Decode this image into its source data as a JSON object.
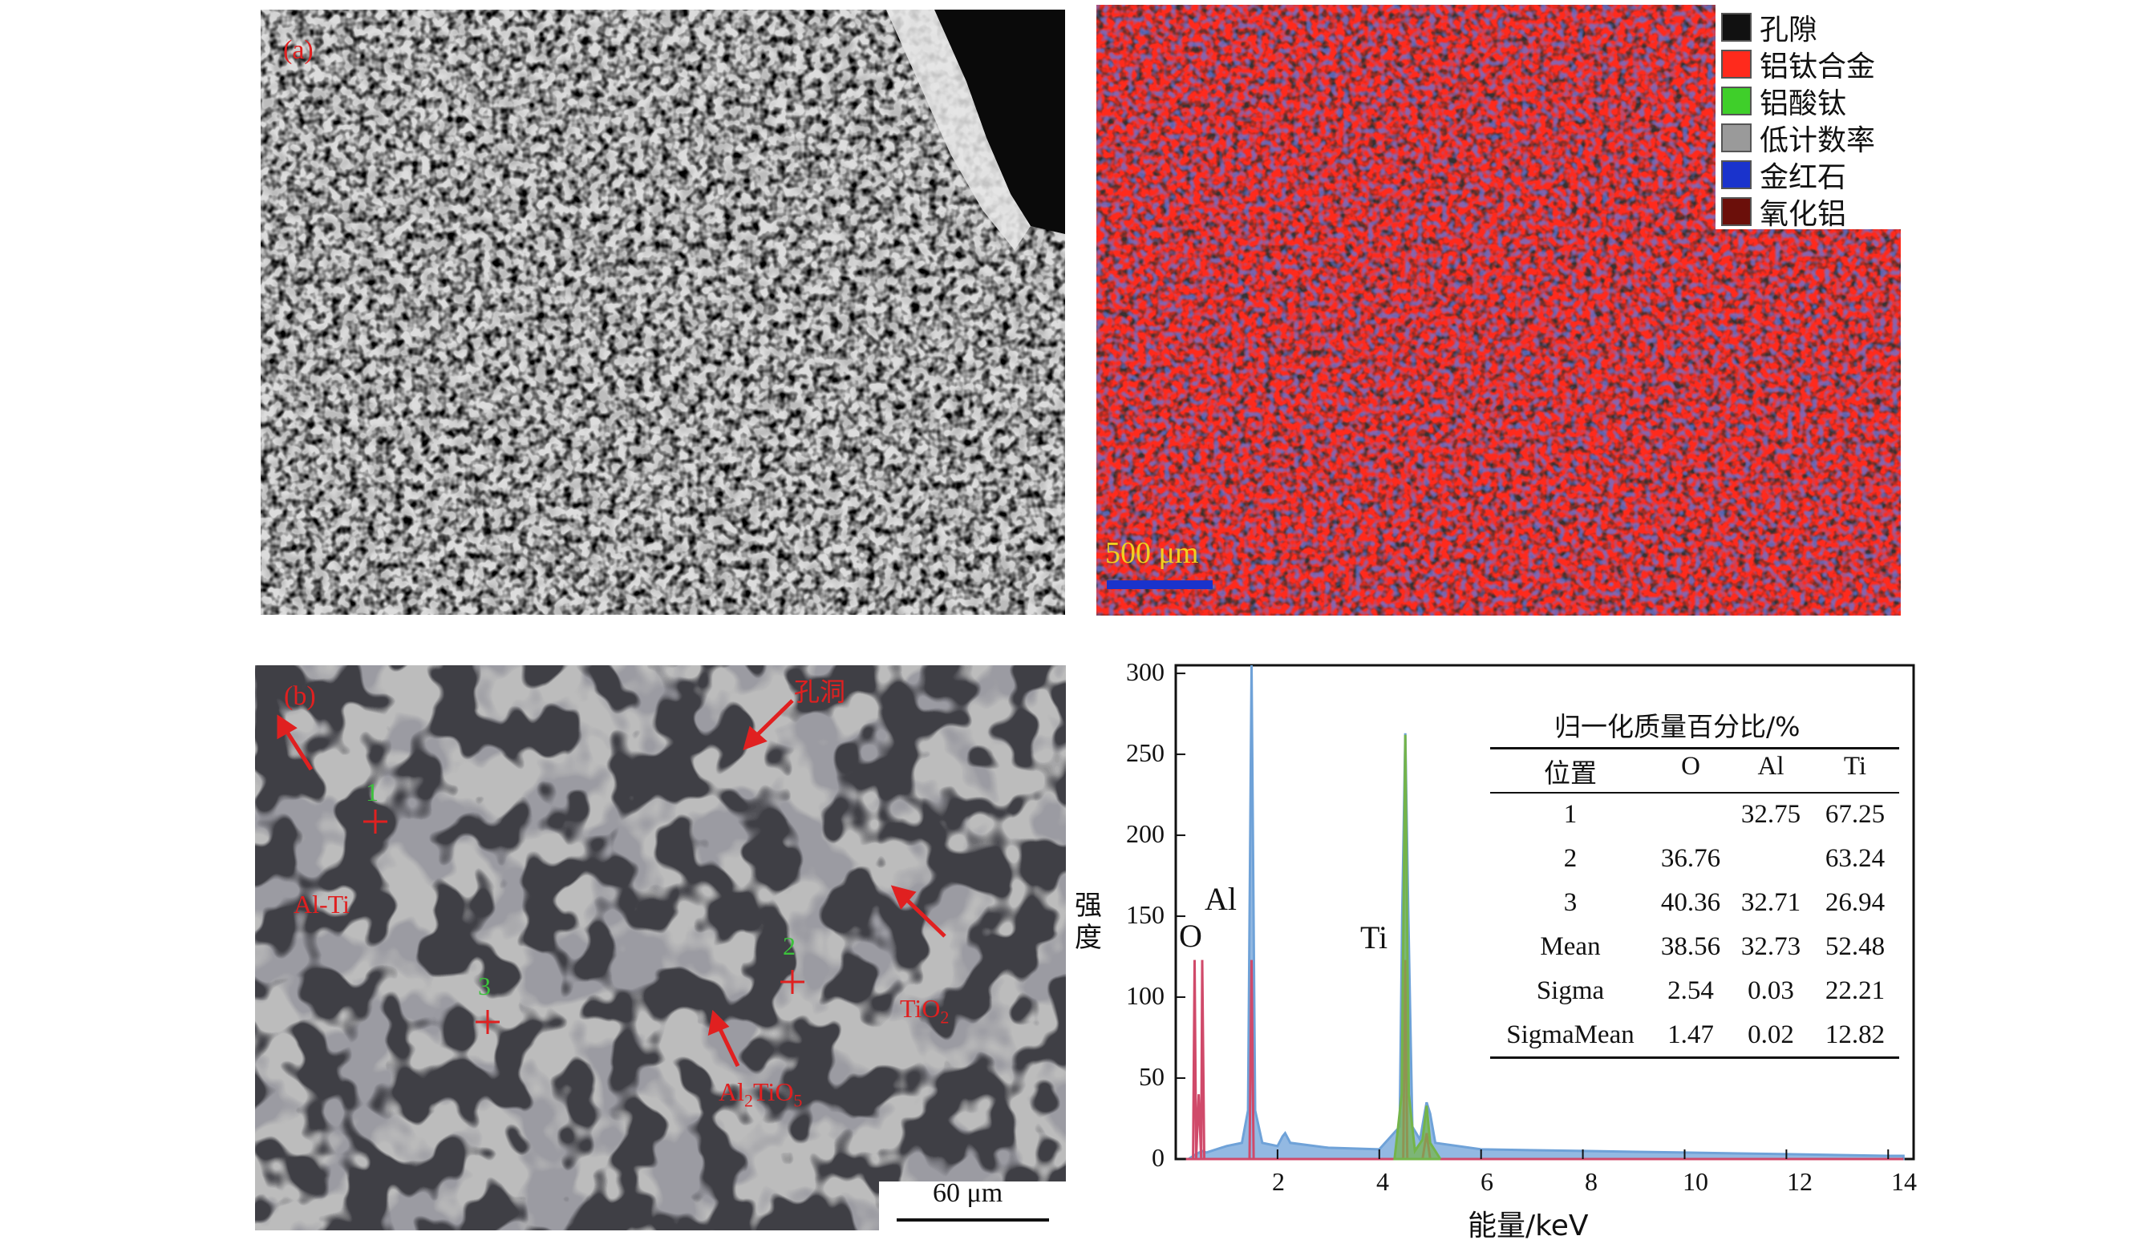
{
  "panel_a": {
    "tag": "(a)"
  },
  "legend": {
    "items": [
      {
        "label": "孔隙",
        "color": "#111111"
      },
      {
        "label": "铝钛合金",
        "color": "#ff2a1c"
      },
      {
        "label": "铝酸钛",
        "color": "#3fcf2a"
      },
      {
        "label": "低计数率",
        "color": "#9a9a9a"
      },
      {
        "label": "金红石",
        "color": "#1a33cc"
      },
      {
        "label": "氧化铝",
        "color": "#6b0f0a"
      }
    ]
  },
  "map_scale": {
    "label": "500 μm",
    "color": "#f0d020",
    "bar_color": "#1a33cc"
  },
  "panel_b": {
    "tag": "(b)",
    "annotations": {
      "pore": "孔洞",
      "alti": "Al-Ti",
      "tio2": "TiO",
      "tio2_sub": "2",
      "al2tio5_a": "Al",
      "al2tio5_sub1": "2",
      "al2tio5_b": "TiO",
      "al2tio5_sub2": "5"
    },
    "points": [
      "1",
      "2",
      "3"
    ],
    "scale": "60 μm"
  },
  "chart_data": {
    "type": "line",
    "title": "",
    "xlabel": "能量/keV",
    "ylabel": "强度",
    "xlim": [
      0,
      14.5
    ],
    "ylim": [
      0,
      305
    ],
    "xticks": [
      "2",
      "4",
      "6",
      "8",
      "10",
      "12",
      "14"
    ],
    "yticks": [
      "0",
      "50",
      "100",
      "150",
      "200",
      "250",
      "300"
    ],
    "peak_labels": [
      "O",
      "Al",
      "Ti"
    ],
    "series": [
      {
        "color": "#6fa2d8",
        "x": [
          0.25,
          0.4,
          0.52,
          0.6,
          1.0,
          1.3,
          1.42,
          1.49,
          1.56,
          1.7,
          2.0,
          2.1,
          2.15,
          2.25,
          3.0,
          4.0,
          4.4,
          4.45,
          4.51,
          4.57,
          4.65,
          4.8,
          4.9,
          4.93,
          5.0,
          5.1,
          6.0,
          8.0,
          10.0,
          12.0,
          14.0,
          14.3
        ],
        "y": [
          0,
          3,
          5,
          4,
          8,
          10,
          30,
          305,
          30,
          10,
          8,
          14,
          16,
          10,
          7,
          6,
          20,
          150,
          263,
          150,
          20,
          12,
          30,
          35,
          28,
          10,
          6,
          5,
          4,
          3,
          2,
          2
        ]
      },
      {
        "color": "#d04a6a",
        "x": [
          0.2,
          0.34,
          0.37,
          0.4,
          0.45,
          0.5,
          0.52,
          0.56,
          0.6,
          1.2,
          1.45,
          1.49,
          1.53,
          1.8,
          4.3,
          4.47,
          4.51,
          4.55,
          4.7,
          4.85,
          4.93,
          5.0,
          5.5,
          14.3
        ],
        "y": [
          0,
          0,
          123,
          0,
          40,
          0,
          123,
          0,
          0,
          0,
          0,
          123,
          0,
          0,
          0,
          0,
          123,
          0,
          0,
          0,
          16,
          0,
          0,
          0
        ]
      },
      {
        "color": "#74b44a",
        "x": [
          4.3,
          4.44,
          4.51,
          4.58,
          4.7,
          4.85,
          4.93,
          5.0,
          5.2
        ],
        "y": [
          0,
          40,
          262,
          40,
          5,
          12,
          33,
          10,
          0
        ]
      }
    ],
    "table": {
      "title": "归一化质量百分比/%",
      "headers": [
        "位置",
        "O",
        "Al",
        "Ti"
      ],
      "rows": [
        [
          "1",
          "",
          "32.75",
          "67.25"
        ],
        [
          "2",
          "36.76",
          "",
          "63.24"
        ],
        [
          "3",
          "40.36",
          "32.71",
          "26.94"
        ],
        [
          "Mean",
          "38.56",
          "32.73",
          "52.48"
        ],
        [
          "Sigma",
          "2.54",
          "0.03",
          "22.21"
        ],
        [
          "SigmaMean",
          "1.47",
          "0.02",
          "12.82"
        ]
      ]
    }
  }
}
